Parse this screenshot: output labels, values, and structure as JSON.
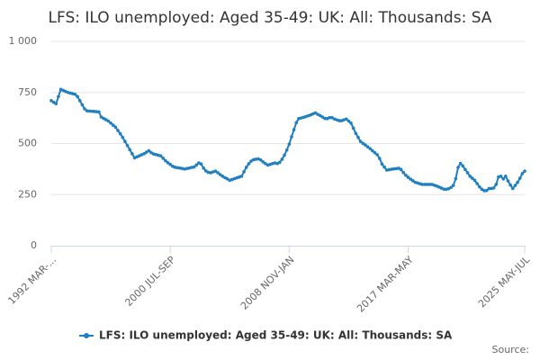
{
  "chart_data": {
    "type": "line",
    "title": "LFS: ILO unemployed: Aged 35-49: UK: All: Thousands: SA",
    "source": "Source:",
    "categories": [
      "1992 MAR-...",
      null,
      null,
      null,
      null,
      null,
      null,
      null,
      null,
      null,
      null,
      null,
      null,
      null,
      null,
      null,
      null,
      null,
      null,
      null,
      null,
      null,
      null,
      null,
      null,
      null,
      null,
      null,
      null,
      null,
      null,
      null,
      null,
      null,
      null,
      null,
      null,
      null,
      null,
      null,
      null,
      null,
      null,
      null,
      null,
      null,
      null,
      null,
      null,
      null,
      "2000 JUL-SEP",
      null,
      null,
      null,
      null,
      null,
      null,
      null,
      null,
      null,
      null,
      null,
      null,
      null,
      null,
      null,
      null,
      null,
      null,
      null,
      null,
      null,
      null,
      null,
      null,
      null,
      null,
      null,
      null,
      null,
      null,
      null,
      null,
      null,
      null,
      null,
      null,
      null,
      null,
      null,
      null,
      null,
      null,
      null,
      null,
      null,
      null,
      null,
      null,
      null,
      "2008 NOV-JAN",
      null,
      null,
      null,
      null,
      null,
      null,
      null,
      null,
      null,
      null,
      null,
      null,
      null,
      null,
      null,
      null,
      null,
      null,
      null,
      null,
      null,
      null,
      null,
      null,
      null,
      null,
      null,
      null,
      null,
      null,
      null,
      null,
      null,
      null,
      null,
      null,
      null,
      null,
      null,
      null,
      null,
      null,
      null,
      null,
      null,
      null,
      null,
      null,
      null,
      "2017 MAR-MAY",
      null,
      null,
      null,
      null,
      null,
      null,
      null,
      null,
      null,
      null,
      null,
      null,
      null,
      null,
      null,
      null,
      null,
      null,
      null,
      null,
      null,
      null,
      null,
      null,
      null,
      null,
      null,
      null,
      null,
      null,
      null,
      null,
      null,
      null,
      null,
      null,
      null,
      null,
      null,
      null,
      null,
      null,
      null,
      null,
      null,
      null,
      null,
      null,
      "2025 MAY-JUL"
    ],
    "series": [
      {
        "name": "LFS: ILO unemployed: Aged 35-49: UK: All: Thousands: SA",
        "color": "#1f7fc0",
        "values": [
          710,
          702,
          695,
          730,
          765,
          760,
          755,
          750,
          747,
          744,
          741,
          730,
          710,
          690,
          670,
          660,
          659,
          658,
          657,
          656,
          655,
          630,
          623,
          617,
          610,
          600,
          590,
          580,
          564,
          548,
          530,
          510,
          490,
          470,
          450,
          430,
          435,
          440,
          445,
          450,
          458,
          465,
          455,
          449,
          446,
          443,
          440,
          428,
          416,
          406,
          398,
          389,
          384,
          382,
          380,
          378,
          375,
          378,
          380,
          383,
          385,
          395,
          405,
          400,
          380,
          366,
          359,
          357,
          361,
          365,
          357,
          348,
          340,
          333,
          327,
          320,
          324,
          328,
          332,
          336,
          340,
          362,
          384,
          401,
          414,
          421,
          423,
          425,
          420,
          410,
          402,
          395,
          398,
          402,
          405,
          402,
          408,
          423,
          443,
          468,
          497,
          533,
          568,
          602,
          622,
          625,
          628,
          632,
          636,
          640,
          645,
          650,
          643,
          637,
          630,
          623,
          622,
          627,
          627,
          620,
          616,
          612,
          612,
          616,
          620,
          610,
          600,
          575,
          550,
          530,
          510,
          501,
          493,
          484,
          475,
          465,
          455,
          445,
          427,
          400,
          385,
          370,
          372,
          374,
          376,
          377,
          379,
          373,
          358,
          345,
          335,
          326,
          318,
          310,
          307,
          303,
          300,
          300,
          300,
          300,
          300,
          296,
          292,
          287,
          282,
          277,
          276,
          279,
          285,
          295,
          328,
          383,
          403,
          390,
          373,
          357,
          340,
          330,
          320,
          304,
          288,
          276,
          269,
          270,
          280,
          280,
          283,
          300,
          337,
          340,
          327,
          340,
          317,
          297,
          280,
          295,
          310,
          330,
          353,
          365
        ]
      }
    ],
    "ylim": [
      0,
      1000
    ],
    "yticks": [
      0,
      250,
      500,
      750,
      {
        "value": 1000,
        "label": "1 000"
      }
    ],
    "grid": true,
    "legend": "bottom"
  }
}
